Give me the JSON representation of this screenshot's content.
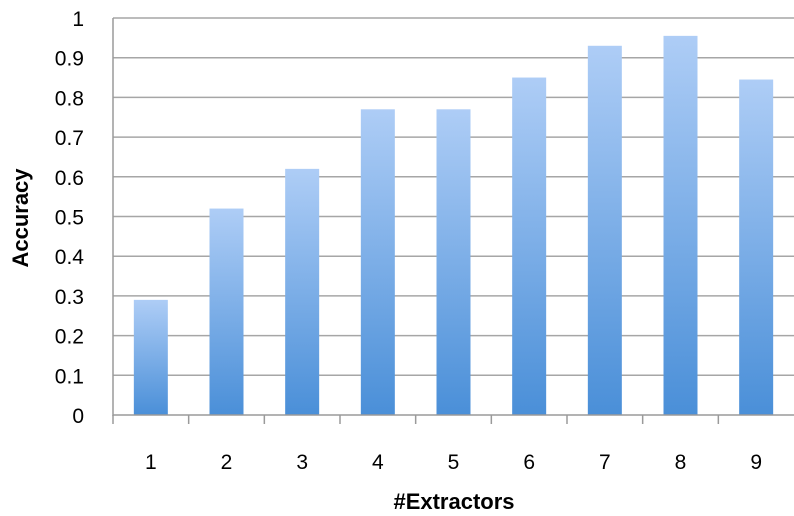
{
  "chart_data": {
    "type": "bar",
    "title": "",
    "xlabel": "#Extractors",
    "ylabel": "Accuracy",
    "categories": [
      "1",
      "2",
      "3",
      "4",
      "5",
      "6",
      "7",
      "8",
      "9"
    ],
    "values": [
      0.29,
      0.52,
      0.62,
      0.77,
      0.77,
      0.85,
      0.93,
      0.955,
      0.845
    ],
    "ylim": [
      0,
      1
    ],
    "yticks": [
      "0",
      "0.1",
      "0.2",
      "0.3",
      "0.4",
      "0.5",
      "0.6",
      "0.7",
      "0.8",
      "0.9",
      "1"
    ],
    "grid": true,
    "legend": "none",
    "colors": {
      "bar_top": "#aecdf6",
      "bar_bottom": "#4a8fd8",
      "grid": "#a6a6a6",
      "axis": "#9a9a9a"
    }
  }
}
